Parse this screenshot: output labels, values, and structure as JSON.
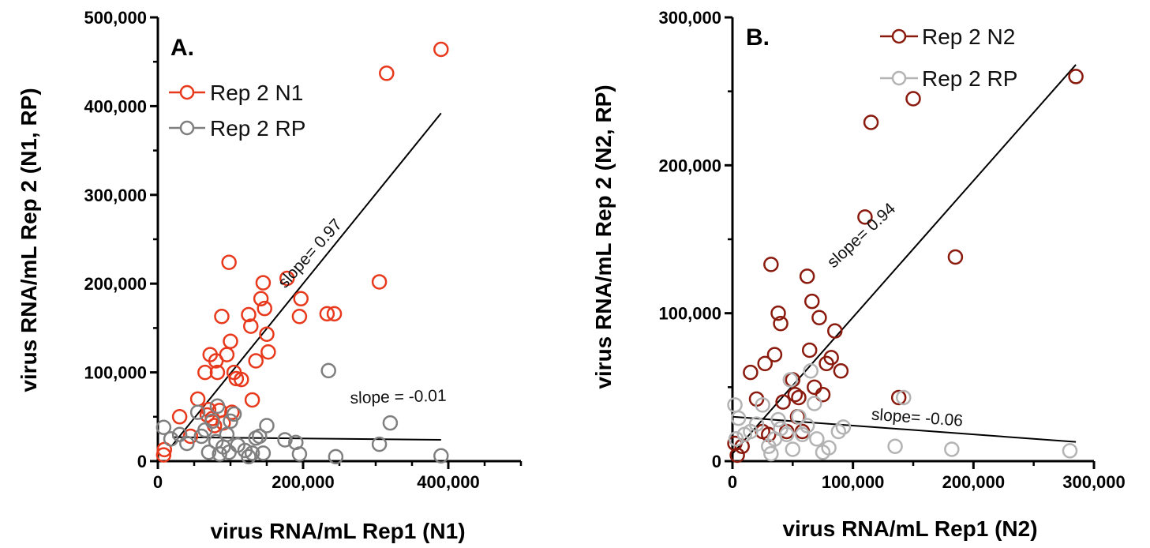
{
  "chart_data": [
    {
      "type": "scatter",
      "panel_label": "A.",
      "xlabel": "virus RNA/mL Rep1 (N1)",
      "ylabel": "virus RNA/mL Rep 2 (N1, RP)",
      "xlim": [
        0,
        500000
      ],
      "ylim": [
        0,
        500000
      ],
      "x_ticks": [
        0,
        200000,
        400000
      ],
      "x_tick_labels": [
        "0",
        "200,000",
        "400,000"
      ],
      "y_ticks": [
        0,
        100000,
        200000,
        300000,
        400000,
        500000
      ],
      "y_tick_labels": [
        "0",
        "100,000",
        "200,000",
        "300,000",
        "400,000",
        "500,000"
      ],
      "legend_position": "top-left",
      "series": [
        {
          "name": "Rep 2 N1",
          "color": "#e8391c",
          "points": [
            [
              8000,
              7000
            ],
            [
              9000,
              13000
            ],
            [
              30000,
              50000
            ],
            [
              45000,
              28000
            ],
            [
              55000,
              70000
            ],
            [
              65000,
              100000
            ],
            [
              68000,
              52000
            ],
            [
              70000,
              58000
            ],
            [
              72000,
              120000
            ],
            [
              75000,
              48000
            ],
            [
              78000,
              40000
            ],
            [
              80000,
              113000
            ],
            [
              82000,
              100000
            ],
            [
              85000,
              57000
            ],
            [
              88000,
              163000
            ],
            [
              90000,
              43000
            ],
            [
              95000,
              120000
            ],
            [
              98000,
              224000
            ],
            [
              100000,
              135000
            ],
            [
              102000,
              55000
            ],
            [
              105000,
              100000
            ],
            [
              108000,
              93000
            ],
            [
              115000,
              92000
            ],
            [
              125000,
              165000
            ],
            [
              128000,
              152000
            ],
            [
              130000,
              69000
            ],
            [
              135000,
              113000
            ],
            [
              142000,
              183000
            ],
            [
              145000,
              201000
            ],
            [
              147000,
              172000
            ],
            [
              150000,
              143000
            ],
            [
              152000,
              123000
            ],
            [
              178000,
              206000
            ],
            [
              195000,
              163000
            ],
            [
              197000,
              183000
            ],
            [
              233000,
              166000
            ],
            [
              243000,
              166000
            ],
            [
              305000,
              202000
            ],
            [
              315000,
              437000
            ],
            [
              390000,
              464000
            ]
          ]
        },
        {
          "name": "Rep 2 RP",
          "color": "#7f7f7f",
          "points": [
            [
              8000,
              38000
            ],
            [
              18000,
              25000
            ],
            [
              30000,
              30000
            ],
            [
              40000,
              20000
            ],
            [
              55000,
              55000
            ],
            [
              60000,
              28000
            ],
            [
              65000,
              35000
            ],
            [
              70000,
              10000
            ],
            [
              75000,
              45000
            ],
            [
              80000,
              22000
            ],
            [
              82000,
              62000
            ],
            [
              85000,
              8000
            ],
            [
              90000,
              16000
            ],
            [
              95000,
              30000
            ],
            [
              98000,
              10000
            ],
            [
              100000,
              45000
            ],
            [
              105000,
              53000
            ],
            [
              110000,
              18000
            ],
            [
              120000,
              12000
            ],
            [
              125000,
              5000
            ],
            [
              130000,
              9000
            ],
            [
              135000,
              26000
            ],
            [
              140000,
              28000
            ],
            [
              145000,
              9000
            ],
            [
              150000,
              40000
            ],
            [
              175000,
              24000
            ],
            [
              190000,
              21000
            ],
            [
              195000,
              8000
            ],
            [
              235000,
              102000
            ],
            [
              245000,
              5000
            ],
            [
              305000,
              19000
            ],
            [
              320000,
              43000
            ],
            [
              390000,
              6000
            ]
          ]
        }
      ],
      "fit_lines": [
        {
          "x": [
            20000,
            390000
          ],
          "y": [
            18000,
            392000
          ]
        },
        {
          "x": [
            20000,
            390000
          ],
          "y": [
            27000,
            24000
          ]
        }
      ],
      "annotations": [
        {
          "text": "slope= 0.97",
          "x": 215000,
          "y": 230000
        },
        {
          "text": "slope = -0.01",
          "x": 265000,
          "y": 65000
        }
      ]
    },
    {
      "type": "scatter",
      "panel_label": "B.",
      "xlabel": "virus RNA/mL Rep1 (N2)",
      "ylabel": "virus RNA/mL Rep 2 (N2, RP)",
      "xlim": [
        0,
        300000
      ],
      "ylim": [
        0,
        300000
      ],
      "x_ticks": [
        0,
        100000,
        200000,
        300000
      ],
      "x_tick_labels": [
        "0",
        "100,000",
        "200,000",
        "300,000"
      ],
      "y_ticks": [
        0,
        100000,
        200000,
        300000
      ],
      "y_tick_labels": [
        "0",
        "100,000",
        "200,000",
        "300,000"
      ],
      "legend_position": "top-right",
      "series": [
        {
          "name": "Rep 2 N2",
          "color": "#8b1a0e",
          "points": [
            [
              2000,
              12000
            ],
            [
              4000,
              4000
            ],
            [
              8000,
              10000
            ],
            [
              15000,
              60000
            ],
            [
              20000,
              42000
            ],
            [
              25000,
              20000
            ],
            [
              27000,
              66000
            ],
            [
              30000,
              18000
            ],
            [
              32000,
              133000
            ],
            [
              35000,
              72000
            ],
            [
              38000,
              100000
            ],
            [
              40000,
              93000
            ],
            [
              42000,
              40000
            ],
            [
              45000,
              20000
            ],
            [
              50000,
              55000
            ],
            [
              52000,
              45000
            ],
            [
              54000,
              30000
            ],
            [
              55000,
              43000
            ],
            [
              58000,
              20000
            ],
            [
              62000,
              125000
            ],
            [
              64000,
              75000
            ],
            [
              66000,
              108000
            ],
            [
              68000,
              50000
            ],
            [
              72000,
              97000
            ],
            [
              75000,
              45000
            ],
            [
              78000,
              66000
            ],
            [
              82000,
              70000
            ],
            [
              85000,
              88000
            ],
            [
              90000,
              61000
            ],
            [
              110000,
              165000
            ],
            [
              115000,
              229000
            ],
            [
              138000,
              43000
            ],
            [
              150000,
              245000
            ],
            [
              185000,
              138000
            ],
            [
              285000,
              260000
            ]
          ]
        },
        {
          "name": "Rep 2 RP",
          "color": "#b3b3b3",
          "points": [
            [
              2000,
              38000
            ],
            [
              3000,
              15000
            ],
            [
              5000,
              29000
            ],
            [
              10000,
              18000
            ],
            [
              15000,
              20000
            ],
            [
              20000,
              25000
            ],
            [
              25000,
              38000
            ],
            [
              30000,
              10000
            ],
            [
              32000,
              5000
            ],
            [
              35000,
              15000
            ],
            [
              38000,
              28000
            ],
            [
              40000,
              22000
            ],
            [
              45000,
              18000
            ],
            [
              48000,
              55000
            ],
            [
              50000,
              8000
            ],
            [
              55000,
              30000
            ],
            [
              58000,
              18000
            ],
            [
              62000,
              24000
            ],
            [
              65000,
              61000
            ],
            [
              68000,
              39000
            ],
            [
              70000,
              15000
            ],
            [
              75000,
              6000
            ],
            [
              80000,
              9000
            ],
            [
              88000,
              20000
            ],
            [
              92000,
              23000
            ],
            [
              135000,
              10000
            ],
            [
              142000,
              43000
            ],
            [
              182000,
              8000
            ],
            [
              280000,
              7000
            ]
          ]
        }
      ],
      "fit_lines": [
        {
          "x": [
            0,
            285000
          ],
          "y": [
            5000,
            268000
          ]
        },
        {
          "x": [
            0,
            285000
          ],
          "y": [
            30000,
            13000
          ]
        }
      ],
      "annotations": [
        {
          "text": "slope= 0.94",
          "x": 110000,
          "y": 150000
        },
        {
          "text": "slope= -0.06",
          "x": 115000,
          "y": 28000
        }
      ]
    }
  ]
}
